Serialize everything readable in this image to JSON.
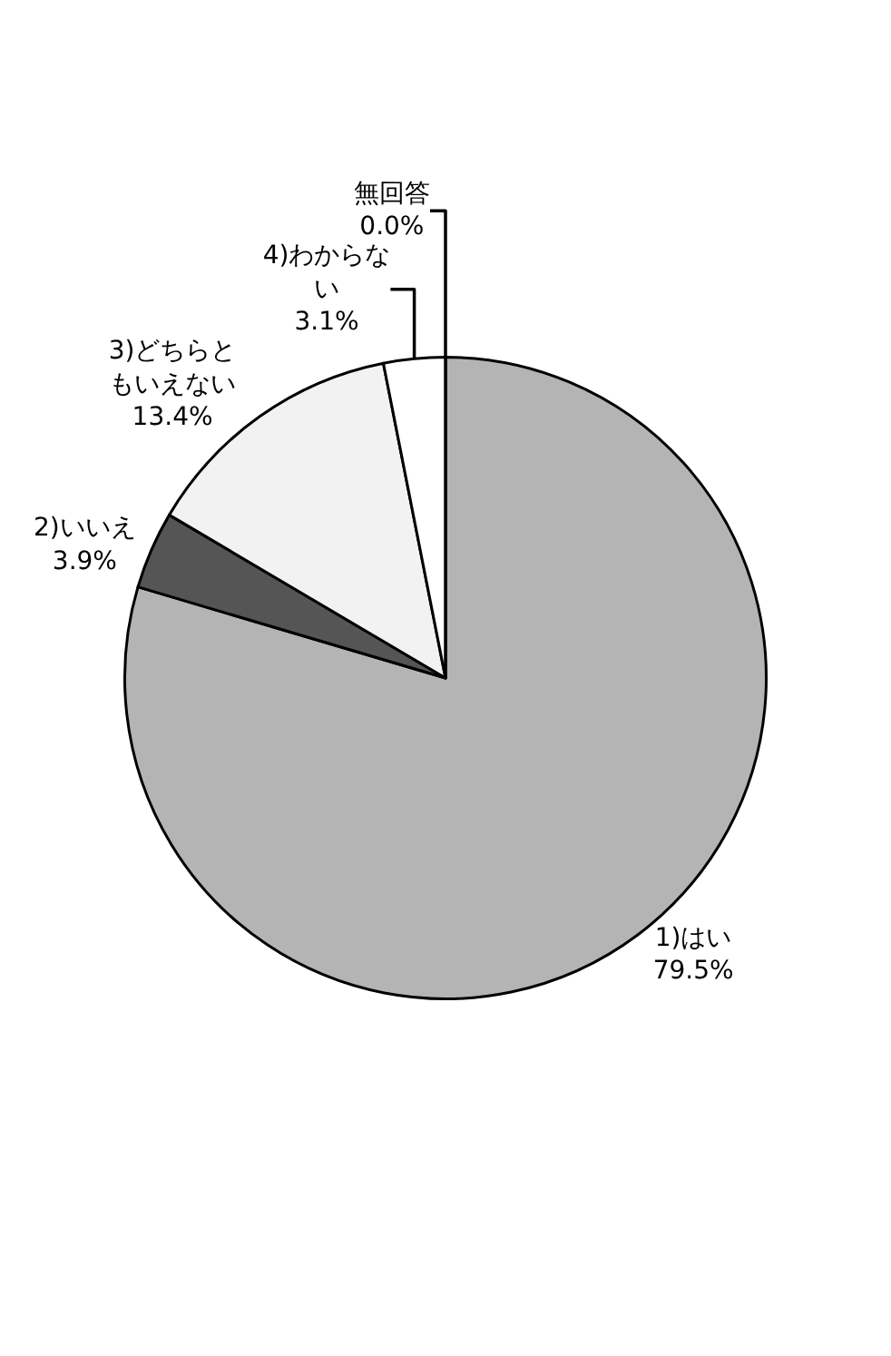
{
  "chart_data": {
    "type": "pie",
    "categories": [
      "1)はい",
      "2)いいえ",
      "3)どちらともいえない",
      "4)わからない",
      "無回答"
    ],
    "values": [
      79.5,
      3.9,
      13.4,
      3.1,
      0.0
    ],
    "value_labels": [
      "79.5%",
      "3.9%",
      "13.4%",
      "3.1%",
      "0.0%"
    ],
    "colors": [
      "#b4b4b4",
      "#555555",
      "#f2f2f2",
      "#ffffff",
      "#ffffff"
    ]
  }
}
